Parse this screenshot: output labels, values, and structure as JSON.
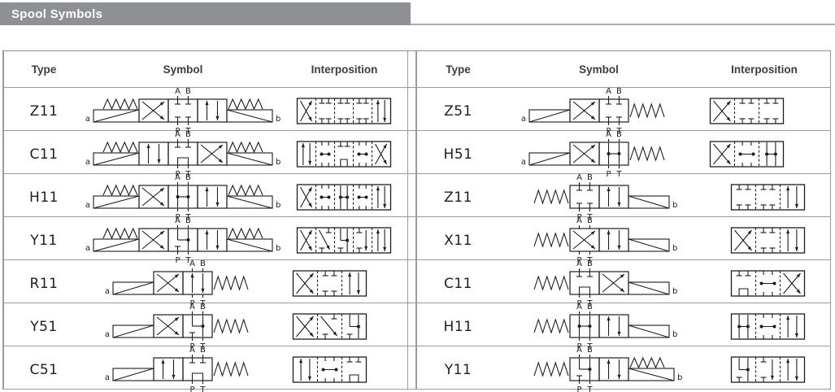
{
  "title": "Spool Symbols",
  "columns": [
    "Type",
    "Symbol",
    "Interposition"
  ],
  "ports": {
    "top": [
      "A",
      "B"
    ],
    "bottom": [
      "P",
      "T"
    ]
  },
  "colors": {
    "header_bg": "#8e9093",
    "header_rule": "#abaeb1",
    "line": "#1d1d1d",
    "grid_line": "#9a9c9e"
  },
  "tables": [
    {
      "rows": [
        {
          "type": "Z11",
          "symbol": {
            "left": {
              "parts": [
                "solenoid",
                "spring"
              ],
              "label": "a"
            },
            "boxes": [
              "cross",
              "blocked",
              "parallel"
            ],
            "right": {
              "parts": [
                "spring",
                "solenoid"
              ],
              "label": "b"
            },
            "ports_box": 1
          },
          "interposition": {
            "segments": [
              "cross",
              "blocked",
              "blocked",
              "blocked",
              "parallel"
            ],
            "align": "center"
          }
        },
        {
          "type": "C11",
          "symbol": {
            "left": {
              "parts": [
                "solenoid",
                "spring"
              ],
              "label": "a"
            },
            "boxes": [
              "parallel",
              "c",
              "cross"
            ],
            "right": {
              "parts": [
                "spring",
                "solenoid"
              ],
              "label": "b"
            },
            "ports_box": 1
          },
          "interposition": {
            "segments": [
              "parallel",
              "hconn",
              "c",
              "hconn",
              "cross"
            ],
            "align": "center"
          }
        },
        {
          "type": "H11",
          "symbol": {
            "left": {
              "parts": [
                "solenoid",
                "spring"
              ],
              "label": "a"
            },
            "boxes": [
              "cross",
              "h",
              "parallel"
            ],
            "right": {
              "parts": [
                "spring",
                "solenoid"
              ],
              "label": "b"
            },
            "ports_box": 1
          },
          "interposition": {
            "segments": [
              "cross",
              "hconn",
              "h",
              "hconn",
              "parallel"
            ],
            "align": "center"
          }
        },
        {
          "type": "Y11",
          "symbol": {
            "left": {
              "parts": [
                "solenoid",
                "spring"
              ],
              "label": "a"
            },
            "boxes": [
              "cross",
              "y",
              "parallel"
            ],
            "right": {
              "parts": [
                "spring",
                "solenoid"
              ],
              "label": "b"
            },
            "ports_box": 1
          },
          "interposition": {
            "segments": [
              "cross",
              "diagT",
              "y",
              "downT",
              "parallel"
            ],
            "align": "center"
          }
        },
        {
          "type": "R11",
          "symbol": {
            "left": {
              "parts": [
                "solenoid"
              ],
              "label": "a"
            },
            "boxes": [
              "cross",
              "parallel"
            ],
            "right": {
              "parts": [
                "spring"
              ],
              "label": null
            },
            "ports_box": 1
          },
          "interposition": {
            "segments": [
              "cross",
              "blocked",
              "parallel"
            ],
            "align": "left"
          }
        },
        {
          "type": "Y51",
          "symbol": {
            "left": {
              "parts": [
                "solenoid"
              ],
              "label": "a"
            },
            "boxes": [
              "cross",
              "y"
            ],
            "right": {
              "parts": [
                "spring"
              ],
              "label": null
            },
            "ports_box": 1
          },
          "interposition": {
            "segments": [
              "cross",
              "diagT",
              "y"
            ],
            "align": "left"
          }
        },
        {
          "type": "C51",
          "symbol": {
            "left": {
              "parts": [
                "solenoid"
              ],
              "label": "a"
            },
            "boxes": [
              "parallel",
              "c"
            ],
            "right": {
              "parts": [
                "spring"
              ],
              "label": null
            },
            "ports_box": 1
          },
          "interposition": {
            "segments": [
              "parallel",
              "hconn",
              "c"
            ],
            "align": "left"
          }
        }
      ]
    },
    {
      "rows": [
        {
          "type": "Z51",
          "symbol": {
            "left": {
              "parts": [
                "solenoid"
              ],
              "label": "a"
            },
            "boxes": [
              "cross",
              "blocked"
            ],
            "right": {
              "parts": [
                "spring"
              ],
              "label": null
            },
            "ports_box": 1
          },
          "interposition": {
            "segments": [
              "cross",
              "blocked",
              "blocked"
            ],
            "align": "left"
          }
        },
        {
          "type": "H51",
          "symbol": {
            "left": {
              "parts": [
                "solenoid"
              ],
              "label": "a"
            },
            "boxes": [
              "cross",
              "h"
            ],
            "right": {
              "parts": [
                "spring"
              ],
              "label": null
            },
            "ports_box": 1
          },
          "interposition": {
            "segments": [
              "cross",
              "hconn",
              "h"
            ],
            "align": "left"
          }
        },
        {
          "type": "Z11",
          "symbol": {
            "left": {
              "parts": [
                "spring"
              ],
              "label": null
            },
            "boxes": [
              "blocked",
              "parallel"
            ],
            "right": {
              "parts": [
                "solenoid"
              ],
              "label": "b"
            },
            "ports_box": 0
          },
          "interposition": {
            "segments": [
              "blocked",
              "blocked",
              "parallel"
            ],
            "align": "right"
          }
        },
        {
          "type": "X11",
          "symbol": {
            "left": {
              "parts": [
                "spring"
              ],
              "label": null
            },
            "boxes": [
              "cross",
              "parallel"
            ],
            "right": {
              "parts": [
                "solenoid"
              ],
              "label": "b"
            },
            "ports_box": 0
          },
          "interposition": {
            "segments": [
              "cross",
              "blocked",
              "parallel"
            ],
            "align": "right"
          }
        },
        {
          "type": "C11",
          "symbol": {
            "left": {
              "parts": [
                "spring"
              ],
              "label": null
            },
            "boxes": [
              "c",
              "cross"
            ],
            "right": {
              "parts": [
                "solenoid"
              ],
              "label": "b"
            },
            "ports_box": 0
          },
          "interposition": {
            "segments": [
              "c",
              "hconn",
              "cross"
            ],
            "align": "right"
          }
        },
        {
          "type": "H11",
          "symbol": {
            "left": {
              "parts": [
                "spring"
              ],
              "label": null
            },
            "boxes": [
              "h",
              "parallel"
            ],
            "right": {
              "parts": [
                "solenoid"
              ],
              "label": "b"
            },
            "ports_box": 0
          },
          "interposition": {
            "segments": [
              "h",
              "hconn",
              "parallel"
            ],
            "align": "right"
          }
        },
        {
          "type": "Y11",
          "symbol": {
            "left": {
              "parts": [
                "spring"
              ],
              "label": null
            },
            "boxes": [
              "y",
              "parallel"
            ],
            "right": {
              "parts": [
                "spring",
                "solenoid"
              ],
              "label": "b"
            },
            "ports_box": 0
          },
          "interposition": {
            "segments": [
              "y",
              "downT",
              "parallel"
            ],
            "align": "right"
          }
        }
      ]
    }
  ]
}
